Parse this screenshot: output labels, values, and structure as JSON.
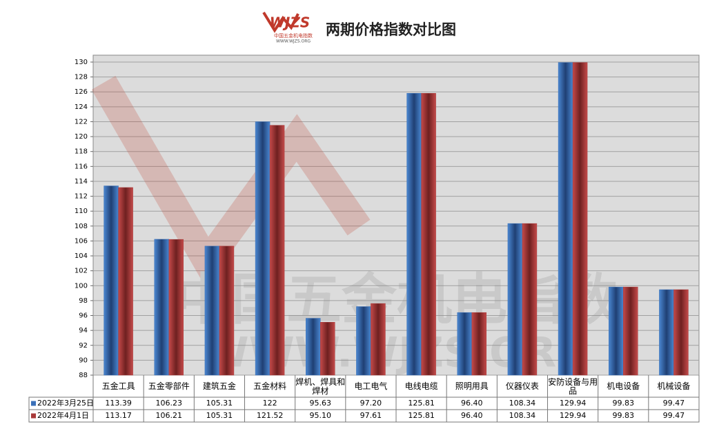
{
  "chart_data": {
    "type": "bar",
    "title": "两期价格指数对比图",
    "logo": "WJZS",
    "logo_subtitle": "中国五金机电指数",
    "logo_url": "WWW.WJZS.ORG",
    "categories": [
      "五金工具",
      "五金零部件",
      "建筑五金",
      "五金材料",
      "焊机、焊具和焊材",
      "电工电气",
      "电线电缆",
      "照明用具",
      "仪器仪表",
      "安防设备与用品",
      "机电设备",
      "机械设备"
    ],
    "series": [
      {
        "name": "2022年3月25日",
        "color": "#3a70b8",
        "values": [
          113.39,
          106.23,
          105.31,
          122,
          95.63,
          97.2,
          125.81,
          96.4,
          108.34,
          129.94,
          99.83,
          99.47
        ],
        "value_labels": [
          "113.39",
          "106.23",
          "105.31",
          "122",
          "95.63",
          "97.20",
          "125.81",
          "96.40",
          "108.34",
          "129.94",
          "99.83",
          "99.47"
        ]
      },
      {
        "name": "2022年4月1日",
        "color": "#a83a3a",
        "values": [
          113.17,
          106.21,
          105.31,
          121.52,
          95.1,
          97.61,
          125.81,
          96.4,
          108.34,
          129.94,
          99.83,
          99.47
        ],
        "value_labels": [
          "113.17",
          "106.21",
          "105.31",
          "121.52",
          "95.10",
          "97.61",
          "125.81",
          "96.40",
          "108.34",
          "129.94",
          "99.83",
          "99.47"
        ]
      }
    ],
    "ylim": [
      88,
      130
    ],
    "yticks": [
      88,
      90,
      92,
      94,
      96,
      98,
      100,
      102,
      104,
      106,
      108,
      110,
      112,
      114,
      116,
      118,
      120,
      122,
      124,
      126,
      128,
      130
    ],
    "grid": true
  }
}
